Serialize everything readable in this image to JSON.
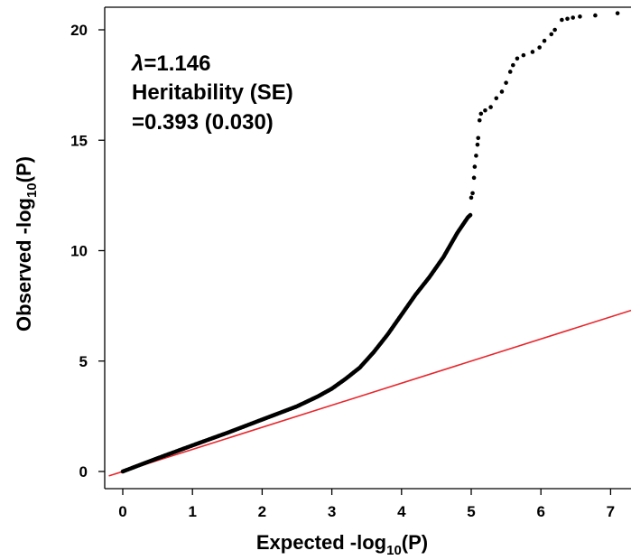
{
  "chart_data": {
    "type": "scatter",
    "xlabel": "Expected  -log",
    "xlabel_sub": "10",
    "xlabel_suffix": "(P)",
    "ylabel": "Observed  -log",
    "ylabel_sub": "10",
    "ylabel_suffix": "(P)",
    "xlim": [
      -0.2,
      7.3
    ],
    "ylim": [
      -0.3,
      21.0
    ],
    "x_ticks": [
      "0",
      "1",
      "2",
      "3",
      "4",
      "5",
      "6",
      "7"
    ],
    "y_ticks": [
      "0",
      "5",
      "10",
      "15",
      "20"
    ],
    "annotation": {
      "symbol": "λ",
      "line1": "=1.146",
      "line2": "Heritability (SE)",
      "line3": "=0.393 (0.030)"
    },
    "reference_line": {
      "slope": 1,
      "intercept": 0,
      "color": "#e8262c"
    },
    "point_color": "#000000",
    "curve": [
      [
        0.0,
        0.0
      ],
      [
        0.5,
        0.6
      ],
      [
        1.0,
        1.18
      ],
      [
        1.5,
        1.75
      ],
      [
        2.0,
        2.35
      ],
      [
        2.5,
        2.95
      ],
      [
        2.8,
        3.4
      ],
      [
        3.0,
        3.75
      ],
      [
        3.2,
        4.2
      ],
      [
        3.4,
        4.7
      ],
      [
        3.6,
        5.4
      ],
      [
        3.8,
        6.2
      ],
      [
        4.0,
        7.1
      ],
      [
        4.2,
        8.0
      ],
      [
        4.4,
        8.8
      ],
      [
        4.6,
        9.7
      ],
      [
        4.8,
        10.8
      ],
      [
        4.95,
        11.5
      ],
      [
        5.0,
        11.65
      ]
    ],
    "tail_points": [
      [
        5.0,
        12.4
      ],
      [
        5.02,
        12.6
      ],
      [
        5.04,
        13.3
      ],
      [
        5.05,
        13.8
      ],
      [
        5.07,
        14.3
      ],
      [
        5.09,
        14.8
      ],
      [
        5.1,
        15.1
      ],
      [
        5.12,
        15.9
      ],
      [
        5.14,
        16.2
      ],
      [
        5.2,
        16.35
      ],
      [
        5.28,
        16.5
      ],
      [
        5.36,
        16.9
      ],
      [
        5.44,
        17.2
      ],
      [
        5.5,
        17.6
      ],
      [
        5.56,
        18.1
      ],
      [
        5.6,
        18.4
      ],
      [
        5.66,
        18.7
      ],
      [
        5.75,
        18.85
      ],
      [
        5.88,
        19.0
      ],
      [
        5.98,
        19.2
      ],
      [
        6.05,
        19.5
      ],
      [
        6.15,
        19.8
      ],
      [
        6.2,
        20.0
      ],
      [
        6.3,
        20.45
      ],
      [
        6.38,
        20.5
      ],
      [
        6.46,
        20.55
      ],
      [
        6.56,
        20.6
      ],
      [
        6.78,
        20.65
      ],
      [
        7.1,
        20.75
      ]
    ]
  }
}
